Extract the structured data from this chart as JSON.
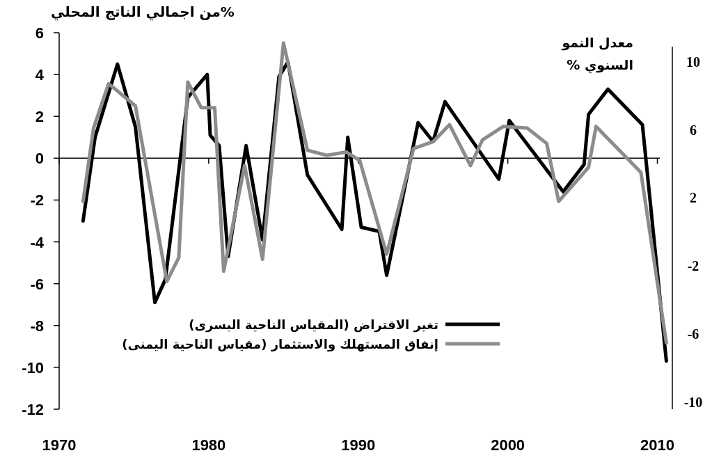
{
  "chart_data": {
    "type": "line",
    "ylabel": "%من اجمالي الناتج المحلي",
    "y2label": "معدل النمو السنوي %",
    "xlim": [
      1970,
      2011
    ],
    "xticks": [
      1970,
      1980,
      1990,
      2000,
      2010
    ],
    "ylim": [
      -12,
      6
    ],
    "yticks": [
      -12,
      -10,
      -8,
      -6,
      -4,
      -2,
      0,
      2,
      4,
      6
    ],
    "y2lim": [
      -10.4,
      11.7
    ],
    "y2ticks": [
      -10,
      -6,
      -2,
      2,
      6,
      10
    ],
    "ref_lines": [
      {
        "axis": "y",
        "value": 0,
        "color": "#000000"
      }
    ],
    "grid": false,
    "legend": "bottom",
    "marker": "none",
    "line_style": "solid",
    "series": [
      {
        "name": "تغير الاقتراض (المقياس الناحية اليسرى)",
        "color": "#000000",
        "x": [
          1971.6,
          1972.4,
          1973.9,
          1975.1,
          1976.4,
          1977.1,
          1978.6,
          1979.9,
          1980.1,
          1980.7,
          1981.3,
          1982.5,
          1983.6,
          1984.7,
          1985.3,
          1986.6,
          1988.9,
          1989.3,
          1990.2,
          1991.4,
          1991.9,
          1994.0,
          1995.0,
          1995.8,
          1999.4,
          2000.1,
          2003.7,
          2005.1,
          2005.4,
          2006.7,
          2009.0,
          2010.6
        ],
        "values": [
          -3.0,
          1.0,
          4.5,
          1.5,
          -6.9,
          -5.8,
          2.9,
          4.0,
          1.1,
          0.6,
          -4.7,
          0.6,
          -3.9,
          3.9,
          4.6,
          -0.8,
          -3.4,
          1.0,
          -3.3,
          -3.5,
          -5.6,
          1.7,
          0.8,
          2.7,
          -1.0,
          1.8,
          -1.6,
          -0.3,
          2.1,
          3.3,
          1.6,
          -9.7
        ]
      },
      {
        "name": "إنفاق المستهلك والاستثمار (مقياس الناحية اليمنى)",
        "color": "#8c8c8c",
        "axis": "y2",
        "x": [
          1971.6,
          1972.3,
          1973.3,
          1973.6,
          1975.1,
          1977.2,
          1978.0,
          1978.6,
          1979.5,
          1980.4,
          1981.0,
          1982.4,
          1983.6,
          1985.0,
          1986.6,
          1987.9,
          1989.2,
          1990.1,
          1991.9,
          1993.7,
          1995.0,
          1996.1,
          1997.5,
          1998.3,
          1999.7,
          2001.3,
          2002.6,
          2003.4,
          2005.4,
          2005.9,
          2008.9,
          2010.6
        ],
        "values": [
          1.8,
          6.1,
          8.7,
          8.5,
          7.4,
          -2.9,
          -1.5,
          8.8,
          7.3,
          7.3,
          -2.3,
          3.9,
          -1.6,
          11.1,
          4.8,
          4.5,
          4.7,
          4.2,
          -1.3,
          4.9,
          5.3,
          6.3,
          3.9,
          5.4,
          6.2,
          6.1,
          5.2,
          1.8,
          3.8,
          6.2,
          3.5,
          -6.5
        ]
      }
    ]
  }
}
